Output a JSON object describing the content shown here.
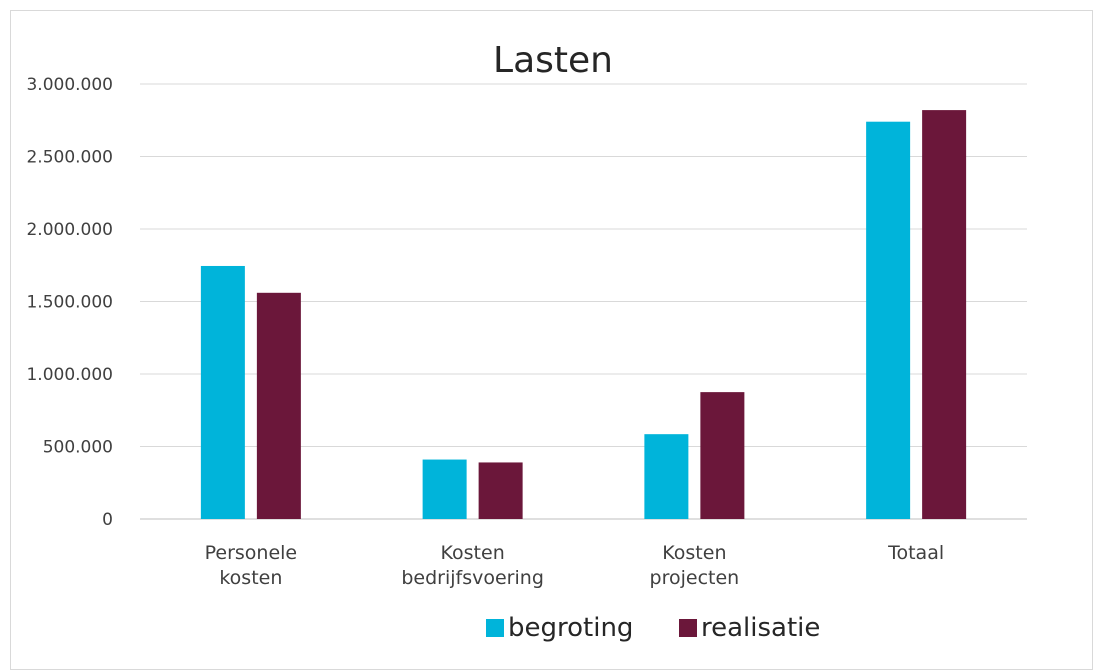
{
  "chart_data": {
    "type": "bar",
    "title": "Lasten",
    "xlabel": "",
    "ylabel": "",
    "categories": [
      [
        "Personele",
        "kosten"
      ],
      [
        "Kosten",
        "bedrijfsvoering"
      ],
      [
        "Kosten",
        "projecten"
      ],
      [
        "Totaal"
      ]
    ],
    "series": [
      {
        "name": "begroting",
        "color": "#00B4DA",
        "values": [
          1745000,
          410000,
          585000,
          2740000
        ]
      },
      {
        "name": "realisatie",
        "color": "#6B173A",
        "values": [
          1560000,
          390000,
          875000,
          2820000
        ]
      }
    ],
    "ylim": [
      0,
      3000000
    ],
    "yticks": [
      "0",
      "500.000",
      "1.000.000",
      "1.500.000",
      "2.000.000",
      "2.500.000",
      "3.000.000"
    ],
    "grid": true,
    "legend_position": "bottom"
  }
}
